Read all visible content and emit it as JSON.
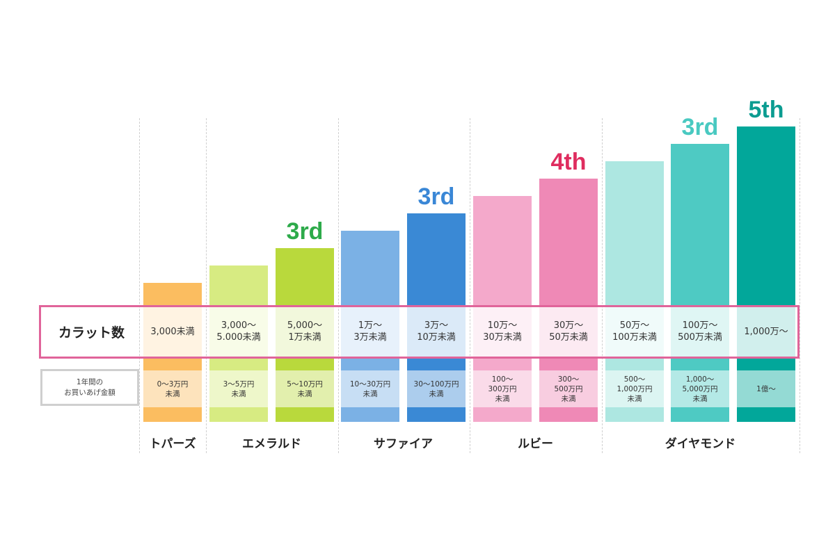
{
  "chart_data": {
    "type": "bar",
    "row_labels": {
      "carat": "カラット数",
      "amount": "1年間の\nお買いあげ金額"
    },
    "groups": [
      {
        "name": "トパーズ",
        "members": 1
      },
      {
        "name": "エメラルド",
        "members": 2
      },
      {
        "name": "サファイア",
        "members": 2
      },
      {
        "name": "ルビー",
        "members": 2
      },
      {
        "name": "ダイヤモンド",
        "members": 3
      }
    ],
    "tiers": [
      {
        "group": "トパーズ",
        "level": 1,
        "rank": "",
        "color": "#fbbd60",
        "carat": "3,000未満",
        "amount": "0〜3万円\n未満"
      },
      {
        "group": "エメラルド",
        "level": 2,
        "rank": "",
        "color": "#d7eb82",
        "carat": "3,000〜\n5.000未満",
        "amount": "3〜5万円\n未満"
      },
      {
        "group": "エメラルド",
        "level": 3,
        "rank": "3rd",
        "rank_color": "#2daa4a",
        "color": "#b9d93c",
        "carat": "5,000〜\n1万未満",
        "amount": "5〜10万円\n未満"
      },
      {
        "group": "サファイア",
        "level": 4,
        "rank": "",
        "color": "#7bb1e5",
        "carat": "1万〜\n3万未満",
        "amount": "10〜30万円\n未満"
      },
      {
        "group": "サファイア",
        "level": 5,
        "rank": "3rd",
        "rank_color": "#3a87d6",
        "color": "#3a89d5",
        "carat": "3万〜\n10万未満",
        "amount": "30〜100万円\n未満"
      },
      {
        "group": "ルビー",
        "level": 6,
        "rank": "",
        "color": "#f4a9cb",
        "carat": "10万〜\n30万未満",
        "amount": "100〜\n300万円\n未満"
      },
      {
        "group": "ルビー",
        "level": 7,
        "rank": "4th",
        "rank_color": "#df2d5f",
        "color": "#ef89b6",
        "carat": "30万〜\n50万未満",
        "amount": "300〜\n500万円\n未満"
      },
      {
        "group": "ダイヤモンド",
        "level": 8,
        "rank": "",
        "color": "#ade7e1",
        "carat": "50万〜\n100万未満",
        "amount": "500〜\n1,000万円\n未満"
      },
      {
        "group": "ダイヤモンド",
        "level": 9,
        "rank": "3rd",
        "rank_color": "#49c9c1",
        "color": "#4ecac3",
        "carat": "100万〜\n500万未満",
        "amount": "1,000〜\n5,000万円\n未満"
      },
      {
        "group": "ダイヤモンド",
        "level": 10,
        "rank": "5th",
        "rank_color": "#0b9c91",
        "color": "#02a79a",
        "carat": "1,000万〜",
        "amount": "1億〜"
      }
    ]
  }
}
